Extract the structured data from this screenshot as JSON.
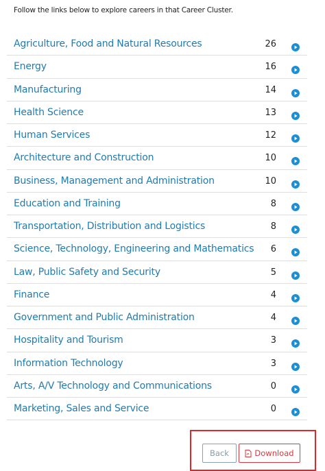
{
  "intro": "Follow the links below to explore careers in that Career Cluster.",
  "clusters": [
    {
      "label": "Agriculture, Food and Natural Resources",
      "count": 26
    },
    {
      "label": "Energy",
      "count": 16
    },
    {
      "label": "Manufacturing",
      "count": 14
    },
    {
      "label": "Health Science",
      "count": 13
    },
    {
      "label": "Human Services",
      "count": 12
    },
    {
      "label": "Architecture and Construction",
      "count": 10
    },
    {
      "label": "Business, Management and Administration",
      "count": 10
    },
    {
      "label": "Education and Training",
      "count": 8
    },
    {
      "label": "Transportation, Distribution and Logistics",
      "count": 8
    },
    {
      "label": "Science, Technology, Engineering and Mathematics",
      "count": 6
    },
    {
      "label": "Law, Public Safety and Security",
      "count": 5
    },
    {
      "label": "Finance",
      "count": 4
    },
    {
      "label": "Government and Public Administration",
      "count": 4
    },
    {
      "label": "Hospitality and Tourism",
      "count": 3
    },
    {
      "label": "Information Technology",
      "count": 3
    },
    {
      "label": "Arts, A/V Technology and Communications",
      "count": 0
    },
    {
      "label": "Marketing, Sales and Service",
      "count": 0
    }
  ],
  "buttons": {
    "back": "Back",
    "download": "Download"
  }
}
